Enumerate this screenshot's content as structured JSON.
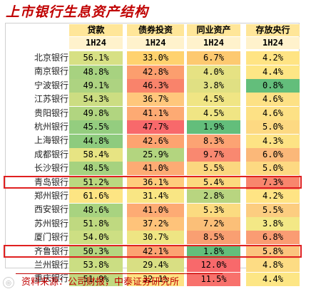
{
  "title": "上市银行生息资产结构",
  "source": "资料来源：公司财报，中泰证券研究所",
  "columns": [
    {
      "label": "贷款",
      "period": "1H24"
    },
    {
      "label": "债券投资",
      "period": "1H24"
    },
    {
      "label": "同业资产",
      "period": "1H24"
    },
    {
      "label": "存放央行",
      "period": "1H24"
    }
  ],
  "rows": [
    {
      "bank": "北京银行",
      "values": [
        "56.1%",
        "33.0%",
        "6.7%",
        "4.2%"
      ],
      "colors": [
        "#d7e084",
        "#ffd26f",
        "#fdc970",
        "#ffe484"
      ]
    },
    {
      "bank": "南京银行",
      "values": [
        "48.8%",
        "42.8%",
        "4.0%",
        "4.4%"
      ],
      "colors": [
        "#a7d280",
        "#fc9e6e",
        "#e6e283",
        "#fde685"
      ]
    },
    {
      "bank": "宁波银行",
      "values": [
        "49.1%",
        "46.3%",
        "3.8%",
        "0.8%"
      ],
      "colors": [
        "#add381",
        "#f9836b",
        "#e0e083",
        "#63be7b"
      ]
    },
    {
      "bank": "江苏银行",
      "values": [
        "54.3%",
        "36.7%",
        "4.5%",
        "4.6%"
      ],
      "colors": [
        "#ccdd82",
        "#ffc77c",
        "#f0e584",
        "#fde185"
      ]
    },
    {
      "bank": "贵阳银行",
      "values": [
        "49.8%",
        "41.1%",
        "4.5%",
        "4.6%"
      ],
      "colors": [
        "#b1d580",
        "#fdaa73",
        "#f0e584",
        "#fde185"
      ]
    },
    {
      "bank": "杭州银行",
      "values": [
        "45.5%",
        "47.7%",
        "1.9%",
        "5.0%"
      ],
      "colors": [
        "#94cd7f",
        "#f8696b",
        "#63be7b",
        "#fdd982"
      ]
    },
    {
      "bank": "上海银行",
      "values": [
        "44.8%",
        "42.6%",
        "8.3%",
        "4.3%"
      ],
      "colors": [
        "#8ecb7e",
        "#fda370",
        "#fca373",
        "#fde384"
      ]
    },
    {
      "bank": "成都银行",
      "values": [
        "58.4%",
        "25.9%",
        "9.7%",
        "6.0%"
      ],
      "colors": [
        "#e7e483",
        "#b3d57f",
        "#f98870",
        "#fbb879"
      ]
    },
    {
      "bank": "长沙银行",
      "values": [
        "48.5%",
        "41.0%",
        "5.5%",
        "5.0%"
      ],
      "colors": [
        "#a6d27f",
        "#fdab74",
        "#fbd77f",
        "#fdd982"
      ]
    },
    {
      "bank": "青岛银行",
      "values": [
        "51.2%",
        "36.1%",
        "5.4%",
        "7.3%"
      ],
      "colors": [
        "#bad880",
        "#ffcc7d",
        "#fcd97f",
        "#f8866d"
      ]
    },
    {
      "bank": "郑州银行",
      "values": [
        "61.6%",
        "31.4%",
        "2.8%",
        "4.2%"
      ],
      "colors": [
        "#fde583",
        "#f9e684",
        "#b8d580",
        "#ffe484"
      ]
    },
    {
      "bank": "西安银行",
      "values": [
        "48.6%",
        "41.0%",
        "5.3%",
        "5.5%"
      ],
      "colors": [
        "#a8d380",
        "#fdab74",
        "#fbdb80",
        "#fccd80"
      ]
    },
    {
      "bank": "苏州银行",
      "values": [
        "51.8%",
        "37.2%",
        "7.2%",
        "3.8%"
      ],
      "colors": [
        "#bfd980",
        "#fec37a",
        "#fbbf78",
        "#f3e886"
      ]
    },
    {
      "bank": "厦门银行",
      "values": [
        "54.0%",
        "30.7%",
        "8.5%",
        "6.8%"
      ],
      "colors": [
        "#cddf83",
        "#eee583",
        "#f99f72",
        "#fa9c73"
      ]
    },
    {
      "bank": "齐鲁银行",
      "values": [
        "50.3%",
        "42.1%",
        "1.8%",
        "5.8%"
      ],
      "colors": [
        "#b4d680",
        "#fca372",
        "#63be7b",
        "#fbc47e"
      ]
    },
    {
      "bank": "兰州银行",
      "values": [
        "53.8%",
        "29.4%",
        "12.0%",
        "4.8%"
      ],
      "colors": [
        "#cbde83",
        "#d9df83",
        "#f8696b",
        "#fddc84"
      ]
    },
    {
      "bank": "重庆银行",
      "values": [
        "51.9%",
        "32.1%",
        "11.5%",
        "4.4%"
      ],
      "colors": [
        "#c0d980",
        "#fde283",
        "#f8716c",
        "#fde685"
      ]
    }
  ],
  "highlighted_banks": [
    "青岛银行",
    "齐鲁银行"
  ]
}
